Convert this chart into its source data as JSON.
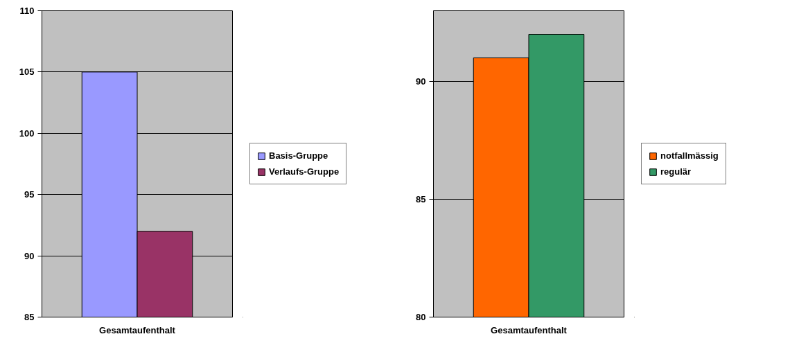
{
  "chart_data": [
    {
      "type": "bar",
      "categories": [
        "Gesamtaufenthalt"
      ],
      "series": [
        {
          "name": "Basis-Gruppe",
          "color": "#9999ff",
          "values": [
            105
          ]
        },
        {
          "name": "Verlaufs-Gruppe",
          "color": "#993366",
          "values": [
            92
          ]
        }
      ],
      "ylim": [
        85,
        110
      ],
      "yticks": [
        85,
        90,
        95,
        100,
        105,
        110
      ],
      "grid": "y",
      "legend": "right"
    },
    {
      "type": "bar",
      "categories": [
        "Gesamtaufenthalt"
      ],
      "series": [
        {
          "name": "notfallmässig",
          "color": "#ff6600",
          "values": [
            91
          ]
        },
        {
          "name": "regulär",
          "color": "#339966",
          "values": [
            92
          ]
        }
      ],
      "ylim": [
        80,
        93
      ],
      "yticks": [
        80,
        85,
        90
      ],
      "grid": "y",
      "legend": "right"
    }
  ]
}
